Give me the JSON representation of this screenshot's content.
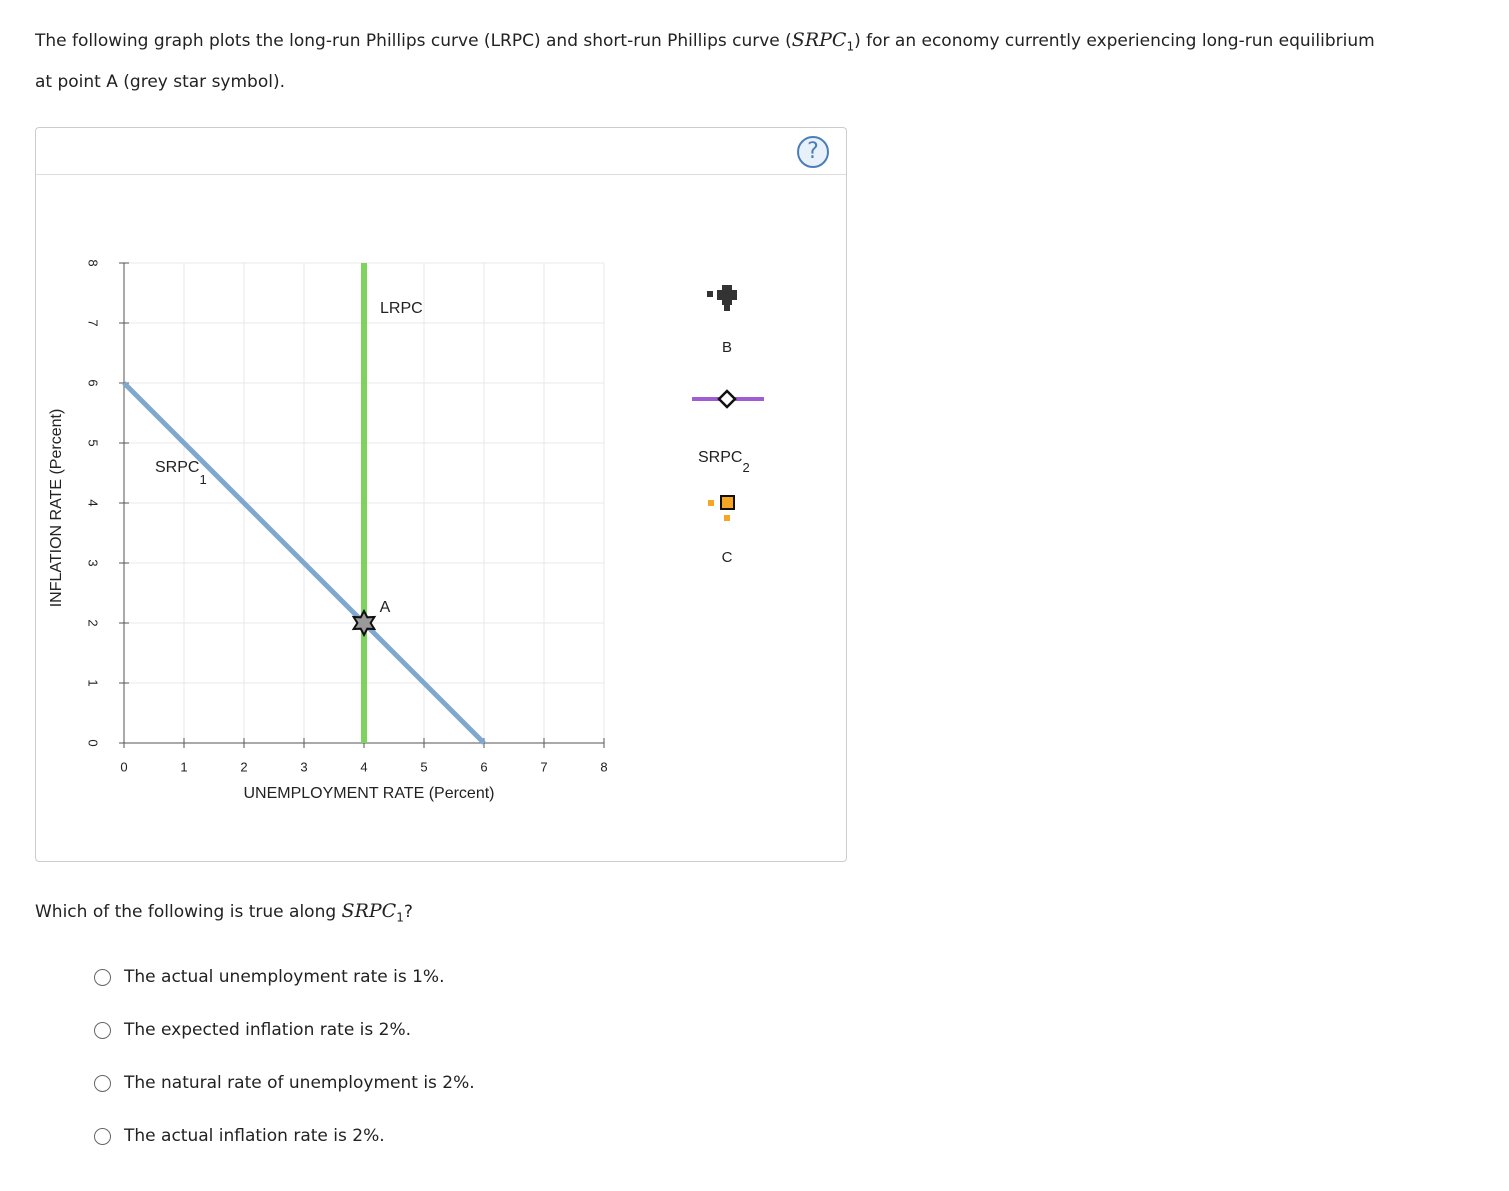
{
  "intro": {
    "before": "The following graph plots the long-run Phillips curve (LRPC) and short-run Phillips curve (",
    "math": "SRPC",
    "sub": "1",
    "after": ") for an economy currently experiencing long-run equilibrium at point A (grey star symbol)."
  },
  "help": "?",
  "chart_data": {
    "type": "line",
    "xlabel": "UNEMPLOYMENT RATE (Percent)",
    "ylabel": "INFLATION RATE (Percent)",
    "xlim": [
      0,
      8
    ],
    "ylim": [
      0,
      8
    ],
    "xticks": [
      0,
      1,
      2,
      3,
      4,
      5,
      6,
      7,
      8
    ],
    "yticks": [
      0,
      1,
      2,
      3,
      4,
      5,
      6,
      7,
      8
    ],
    "grid": true,
    "series": [
      {
        "name": "LRPC",
        "color": "#7ed35f",
        "x": [
          4,
          4
        ],
        "values": [
          0,
          8
        ]
      },
      {
        "name": "SRPC",
        "subscript": "1",
        "color": "#7fa7cf",
        "x": [
          0,
          6
        ],
        "values": [
          6,
          0
        ]
      }
    ],
    "points": [
      {
        "label": "A",
        "x": 4,
        "y": 2,
        "color": "#9a9a9a"
      }
    ],
    "palette": [
      {
        "label": "B"
      },
      {
        "label": "SRPC",
        "subscript": "2"
      },
      {
        "label": "C"
      }
    ]
  },
  "question": {
    "before": "Which of the following is true along ",
    "math": "SRPC",
    "sub": "1",
    "after": "?"
  },
  "options": [
    "The actual unemployment rate is 1%.",
    "The expected inflation rate is 2%.",
    "The natural rate of unemployment is 2%.",
    "The actual inflation rate is 2%."
  ]
}
